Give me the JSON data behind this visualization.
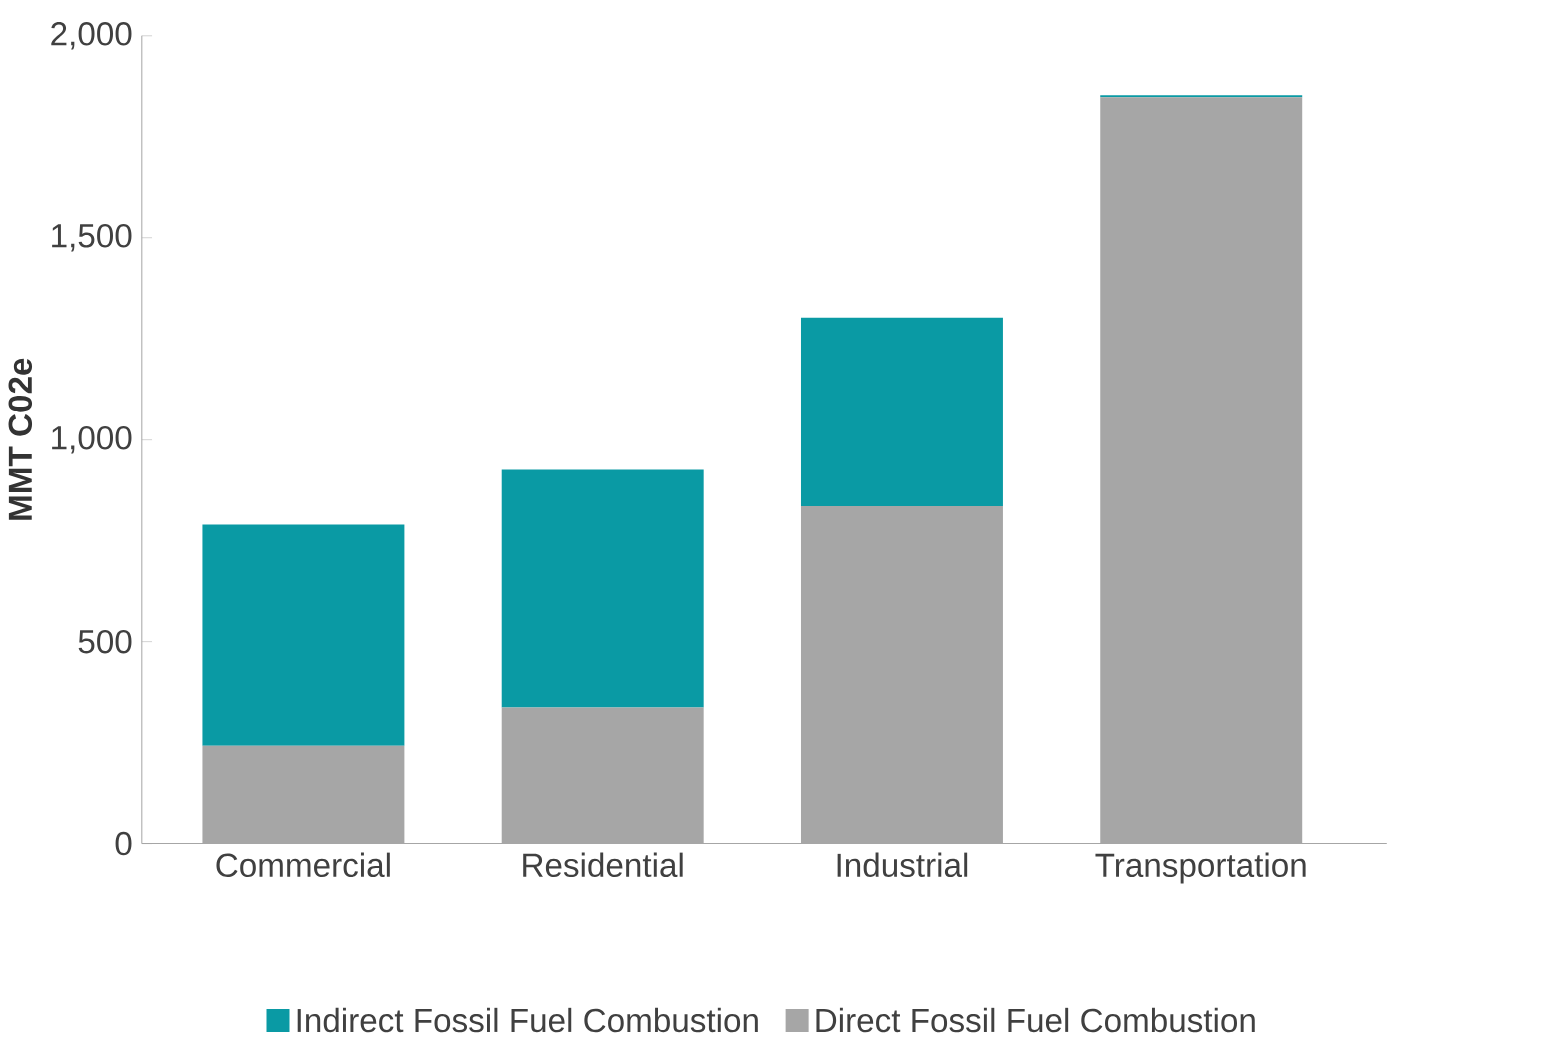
{
  "chart_data": {
    "type": "bar",
    "stacked": true,
    "ylabel": "MMT C02e",
    "categories": [
      "Commercial",
      "Residential",
      "Industrial",
      "Transportation"
    ],
    "series": [
      {
        "name": "Direct Fossil Fuel Combustion",
        "color": "#a6a6a6",
        "values": [
          242,
          337,
          836,
          1848
        ]
      },
      {
        "name": "Indirect Fossil Fuel Combustion",
        "color": "#0a9aa4",
        "values": [
          548,
          589,
          466,
          5
        ]
      }
    ],
    "ylim": [
      0,
      2000
    ],
    "yticks": [
      {
        "value": 0,
        "label": "0"
      },
      {
        "value": 500,
        "label": "500"
      },
      {
        "value": 1000,
        "label": "1,000"
      },
      {
        "value": 1500,
        "label": "1,500"
      },
      {
        "value": 2000,
        "label": "2,000"
      }
    ],
    "grid": false,
    "legend": "bottom"
  }
}
